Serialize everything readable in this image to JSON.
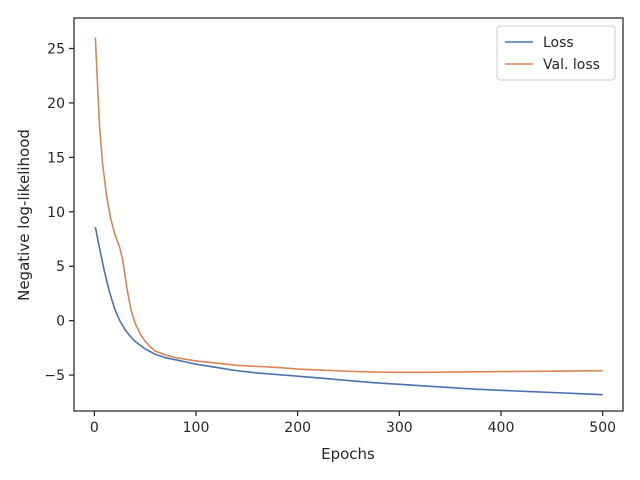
{
  "chart_data": {
    "type": "line",
    "xlabel": "Epochs",
    "ylabel": "Negative log-likelihood",
    "xlim": [
      -20,
      520
    ],
    "ylim": [
      -8.3,
      27.8
    ],
    "xticks": [
      0,
      100,
      200,
      300,
      400,
      500
    ],
    "yticks": [
      -5,
      0,
      5,
      10,
      15,
      20,
      25
    ],
    "xtick_labels": [
      "0",
      "100",
      "200",
      "300",
      "400",
      "500"
    ],
    "ytick_labels": [
      "−5",
      "0",
      "5",
      "10",
      "15",
      "20",
      "25"
    ],
    "grid": false,
    "legend_position": "top-right",
    "series": [
      {
        "name": "Loss",
        "color": "#4c72b0",
        "points": [
          [
            1,
            8.6
          ],
          [
            5,
            6.7
          ],
          [
            10,
            4.5
          ],
          [
            15,
            2.6
          ],
          [
            20,
            1.1
          ],
          [
            25,
            0.0
          ],
          [
            30,
            -0.8
          ],
          [
            35,
            -1.4
          ],
          [
            40,
            -1.9
          ],
          [
            50,
            -2.6
          ],
          [
            60,
            -3.1
          ],
          [
            70,
            -3.4
          ],
          [
            80,
            -3.6
          ],
          [
            90,
            -3.8
          ],
          [
            100,
            -4.0
          ],
          [
            120,
            -4.3
          ],
          [
            140,
            -4.6
          ],
          [
            160,
            -4.8
          ],
          [
            180,
            -4.95
          ],
          [
            200,
            -5.1
          ],
          [
            225,
            -5.3
          ],
          [
            250,
            -5.5
          ],
          [
            275,
            -5.7
          ],
          [
            300,
            -5.85
          ],
          [
            325,
            -6.0
          ],
          [
            350,
            -6.15
          ],
          [
            375,
            -6.3
          ],
          [
            400,
            -6.4
          ],
          [
            425,
            -6.5
          ],
          [
            450,
            -6.6
          ],
          [
            475,
            -6.7
          ],
          [
            500,
            -6.8
          ]
        ]
      },
      {
        "name": "Val. loss",
        "color": "#dd8452",
        "points": [
          [
            1,
            26.0
          ],
          [
            3,
            22.0
          ],
          [
            5,
            18.0
          ],
          [
            8,
            14.5
          ],
          [
            12,
            11.5
          ],
          [
            16,
            9.4
          ],
          [
            20,
            8.0
          ],
          [
            25,
            6.7
          ],
          [
            28,
            5.5
          ],
          [
            32,
            3.0
          ],
          [
            36,
            1.0
          ],
          [
            40,
            -0.2
          ],
          [
            45,
            -1.2
          ],
          [
            50,
            -1.9
          ],
          [
            55,
            -2.4
          ],
          [
            60,
            -2.8
          ],
          [
            70,
            -3.15
          ],
          [
            80,
            -3.4
          ],
          [
            100,
            -3.7
          ],
          [
            120,
            -3.9
          ],
          [
            140,
            -4.1
          ],
          [
            160,
            -4.2
          ],
          [
            180,
            -4.3
          ],
          [
            200,
            -4.45
          ],
          [
            225,
            -4.55
          ],
          [
            250,
            -4.65
          ],
          [
            275,
            -4.72
          ],
          [
            300,
            -4.75
          ],
          [
            325,
            -4.75
          ],
          [
            350,
            -4.72
          ],
          [
            375,
            -4.7
          ],
          [
            400,
            -4.68
          ],
          [
            425,
            -4.66
          ],
          [
            450,
            -4.64
          ],
          [
            475,
            -4.62
          ],
          [
            500,
            -4.6
          ]
        ]
      }
    ]
  }
}
